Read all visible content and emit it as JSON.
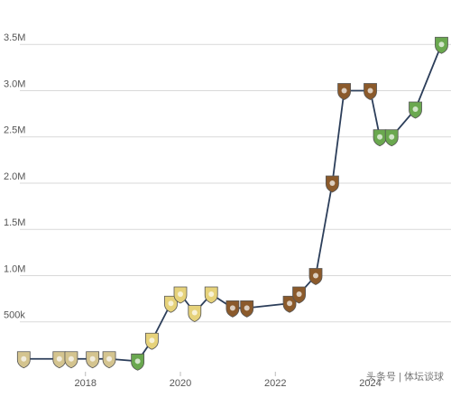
{
  "chart_data": {
    "type": "line",
    "x": [
      2016.7,
      2017.45,
      2017.7,
      2018.15,
      2018.5,
      2019.1,
      2019.4,
      2019.8,
      2020.0,
      2020.3,
      2020.65,
      2021.1,
      2021.4,
      2022.3,
      2022.5,
      2022.85,
      2023.2,
      2023.45,
      2024.0,
      2024.2,
      2024.45,
      2024.95,
      2025.5
    ],
    "series": [
      {
        "color": "#2c3e5a",
        "values": [
          100000,
          100000,
          100000,
          100000,
          100000,
          75000,
          300000,
          700000,
          800000,
          600000,
          800000,
          650000,
          650000,
          700000,
          800000,
          1000000,
          2000000,
          3000000,
          3000000,
          2500000,
          2500000,
          2800000,
          3500000
        ]
      }
    ],
    "marker_colors": [
      "#d4c48f",
      "#d4c48f",
      "#d4c48f",
      "#d4c48f",
      "#d4c48f",
      "#6aa84f",
      "#e6d27a",
      "#e6d27a",
      "#e6d27a",
      "#e6d27a",
      "#e6d27a",
      "#8b5a2b",
      "#8b5a2b",
      "#8b5a2b",
      "#8b5a2b",
      "#8b5a2b",
      "#8b5a2b",
      "#8b5a2b",
      "#8b5a2b",
      "#6aa84f",
      "#6aa84f",
      "#6aa84f",
      "#6aa84f"
    ],
    "xlim": [
      2016.2,
      2025.7
    ],
    "xticks": [
      2018,
      2020,
      2022,
      2024
    ],
    "ylim": [
      0,
      3600000
    ],
    "yticks": [
      {
        "value": 500000,
        "label": "500k"
      },
      {
        "value": 1000000,
        "label": "1.0M"
      },
      {
        "value": 1500000,
        "label": "1.5M"
      },
      {
        "value": 2000000,
        "label": "2.0M"
      },
      {
        "value": 2500000,
        "label": "2.5M"
      },
      {
        "value": 3000000,
        "label": "3.0M"
      },
      {
        "value": 3500000,
        "label": "3.5M"
      }
    ],
    "grid": true,
    "watermark": "头条号 | 体坛谈球"
  }
}
